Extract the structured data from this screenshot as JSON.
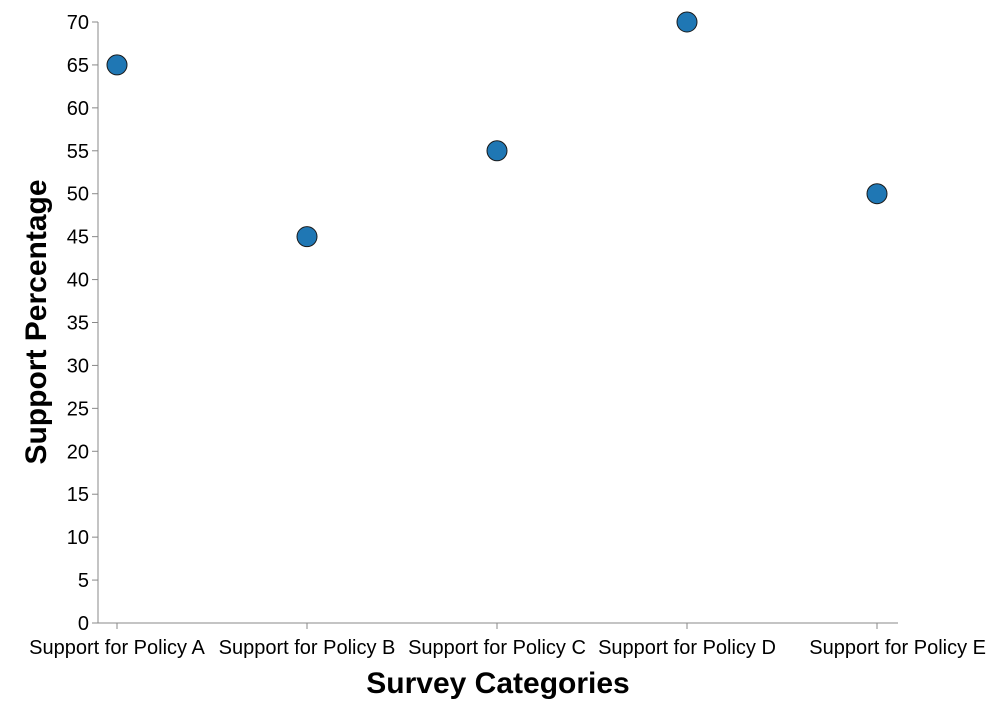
{
  "chart_data": {
    "type": "scatter",
    "categories": [
      "Support for Policy A",
      "Support for Policy B",
      "Support for Policy C",
      "Support for Policy D",
      "Support for Policy E"
    ],
    "values": [
      65,
      45,
      55,
      70,
      50
    ],
    "title": "",
    "xlabel": "Survey Categories",
    "ylabel": "Support Percentage",
    "ylim": [
      0,
      70
    ],
    "yticks": [
      0,
      5,
      10,
      15,
      20,
      25,
      30,
      35,
      40,
      45,
      50,
      55,
      60,
      65,
      70
    ],
    "grid": false,
    "legend": "none",
    "point_color": "#1f77b4"
  }
}
